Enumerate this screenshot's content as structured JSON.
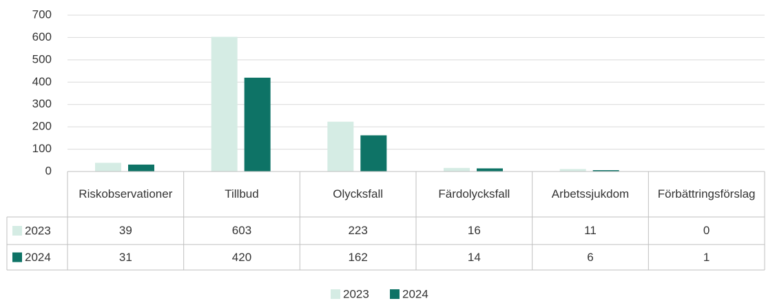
{
  "chart_data": {
    "type": "bar",
    "categories": [
      "Riskobservationer",
      "Tillbud",
      "Olycksfall",
      "Färdolycksfall",
      "Arbetssjukdom",
      "Förbättringsförslag"
    ],
    "series": [
      {
        "name": "2023",
        "color": "#d5ece4",
        "values": [
          39,
          603,
          223,
          16,
          11,
          0
        ]
      },
      {
        "name": "2024",
        "color": "#0e7366",
        "values": [
          31,
          420,
          162,
          14,
          6,
          1
        ]
      }
    ],
    "ylim": [
      0,
      700
    ],
    "yticks": [
      0,
      100,
      200,
      300,
      400,
      500,
      600,
      700
    ],
    "grid": true,
    "legend": "bottom",
    "data_table": true
  }
}
